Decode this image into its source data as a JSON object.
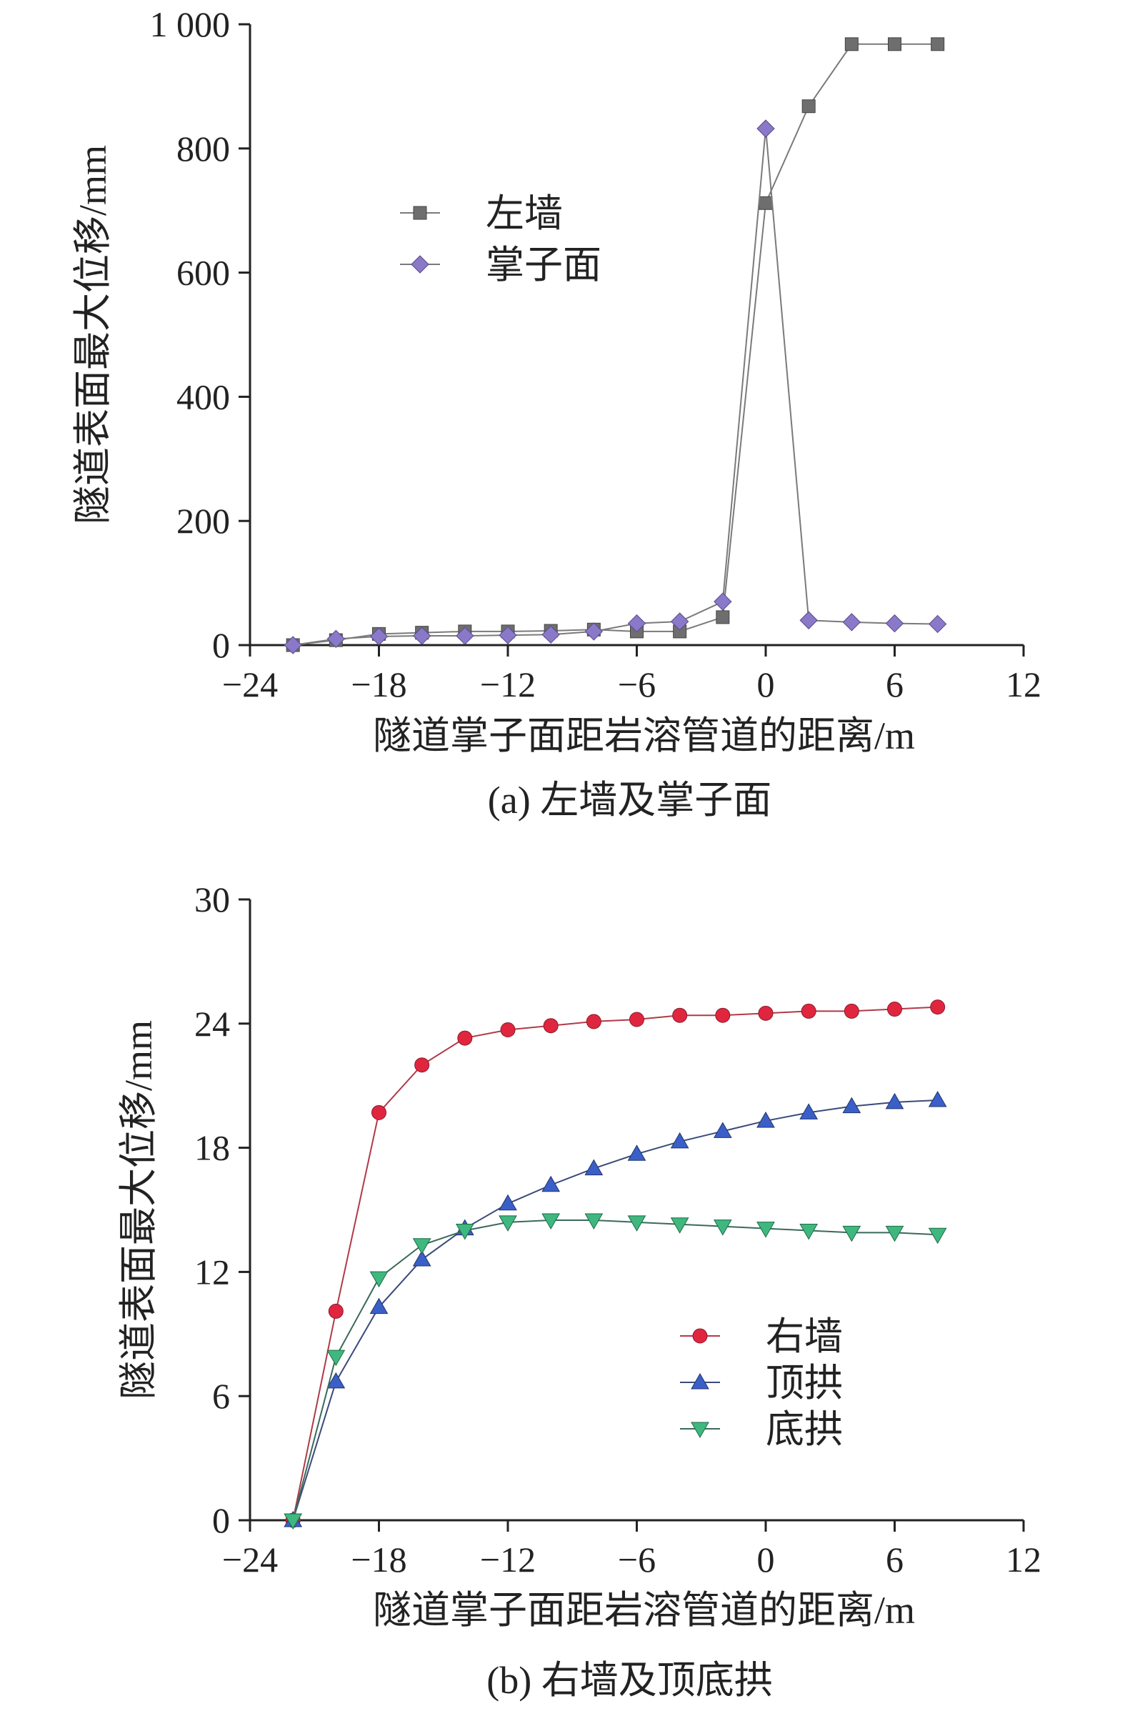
{
  "chart_data": [
    {
      "type": "line",
      "caption": "(a) 左墙及掌子面",
      "xlabel": "隧道掌子面距岩溶管道的距离/m",
      "ylabel": "隧道表面最大位移/mm",
      "xlim": [
        -24,
        12
      ],
      "ylim": [
        0,
        1000
      ],
      "xticks": [
        -24,
        -18,
        -12,
        -6,
        0,
        6,
        12
      ],
      "xtick_labels": [
        "−24",
        "−18",
        "−12",
        "−6",
        "0",
        "6",
        "12"
      ],
      "yticks": [
        0,
        200,
        400,
        600,
        800,
        1000
      ],
      "ytick_labels": [
        "0",
        "200",
        "400",
        "600",
        "800",
        "1 000"
      ],
      "legend_position": "upper-left",
      "series": [
        {
          "name": "左墙",
          "marker": "square",
          "color": "#6e6e6e",
          "line_color": "#7a7a7a",
          "x": [
            -22,
            -20,
            -18,
            -16,
            -14,
            -12,
            -10,
            -8,
            -6,
            -4,
            -2,
            0,
            2,
            4,
            6,
            8
          ],
          "y": [
            0,
            8,
            18,
            20,
            22,
            22,
            23,
            25,
            22,
            22,
            45,
            712,
            868,
            968,
            968,
            968
          ]
        },
        {
          "name": "掌子面",
          "marker": "diamond",
          "color": "#8a78c8",
          "line_color": "#7a7a7a",
          "x": [
            -22,
            -20,
            -18,
            -16,
            -14,
            -12,
            -10,
            -8,
            -6,
            -4,
            -2,
            0,
            2,
            4,
            6,
            8
          ],
          "y": [
            0,
            10,
            14,
            15,
            15,
            16,
            17,
            22,
            35,
            38,
            70,
            832,
            40,
            37,
            35,
            34
          ]
        }
      ]
    },
    {
      "type": "line",
      "caption": "(b) 右墙及顶底拱",
      "xlabel": "隧道掌子面距岩溶管道的距离/m",
      "ylabel": "隧道表面最大位移/mm",
      "xlim": [
        -24,
        12
      ],
      "ylim": [
        0,
        30
      ],
      "xticks": [
        -24,
        -18,
        -12,
        -6,
        0,
        6,
        12
      ],
      "xtick_labels": [
        "−24",
        "−18",
        "−12",
        "−6",
        "0",
        "6",
        "12"
      ],
      "yticks": [
        0,
        6,
        12,
        18,
        24,
        30
      ],
      "ytick_labels": [
        "0",
        "6",
        "12",
        "18",
        "24",
        "30"
      ],
      "legend_position": "lower-right",
      "series": [
        {
          "name": "右墙",
          "marker": "circle",
          "color": "#e0263f",
          "line_color": "#b03a48",
          "x": [
            -22,
            -20,
            -18,
            -16,
            -14,
            -12,
            -10,
            -8,
            -6,
            -4,
            -2,
            0,
            2,
            4,
            6,
            8
          ],
          "y": [
            0,
            10.1,
            19.7,
            22.0,
            23.3,
            23.7,
            23.9,
            24.1,
            24.2,
            24.4,
            24.4,
            24.5,
            24.6,
            24.6,
            24.7,
            24.8
          ]
        },
        {
          "name": "顶拱",
          "marker": "triangle-up",
          "color": "#3a5fc8",
          "line_color": "#3a4a7a",
          "x": [
            -22,
            -20,
            -18,
            -16,
            -14,
            -12,
            -10,
            -8,
            -6,
            -4,
            -2,
            0,
            2,
            4,
            6,
            8
          ],
          "y": [
            0,
            6.7,
            10.3,
            12.6,
            14.1,
            15.3,
            16.2,
            17.0,
            17.7,
            18.3,
            18.8,
            19.3,
            19.7,
            20.0,
            20.2,
            20.3
          ]
        },
        {
          "name": "底拱",
          "marker": "triangle-down",
          "color": "#3fb87f",
          "line_color": "#3a6a5a",
          "x": [
            -22,
            -20,
            -18,
            -16,
            -14,
            -12,
            -10,
            -8,
            -6,
            -4,
            -2,
            0,
            2,
            4,
            6,
            8
          ],
          "y": [
            0,
            7.9,
            11.7,
            13.3,
            14.0,
            14.4,
            14.5,
            14.5,
            14.4,
            14.3,
            14.2,
            14.1,
            14.0,
            13.9,
            13.9,
            13.8
          ]
        }
      ]
    }
  ]
}
